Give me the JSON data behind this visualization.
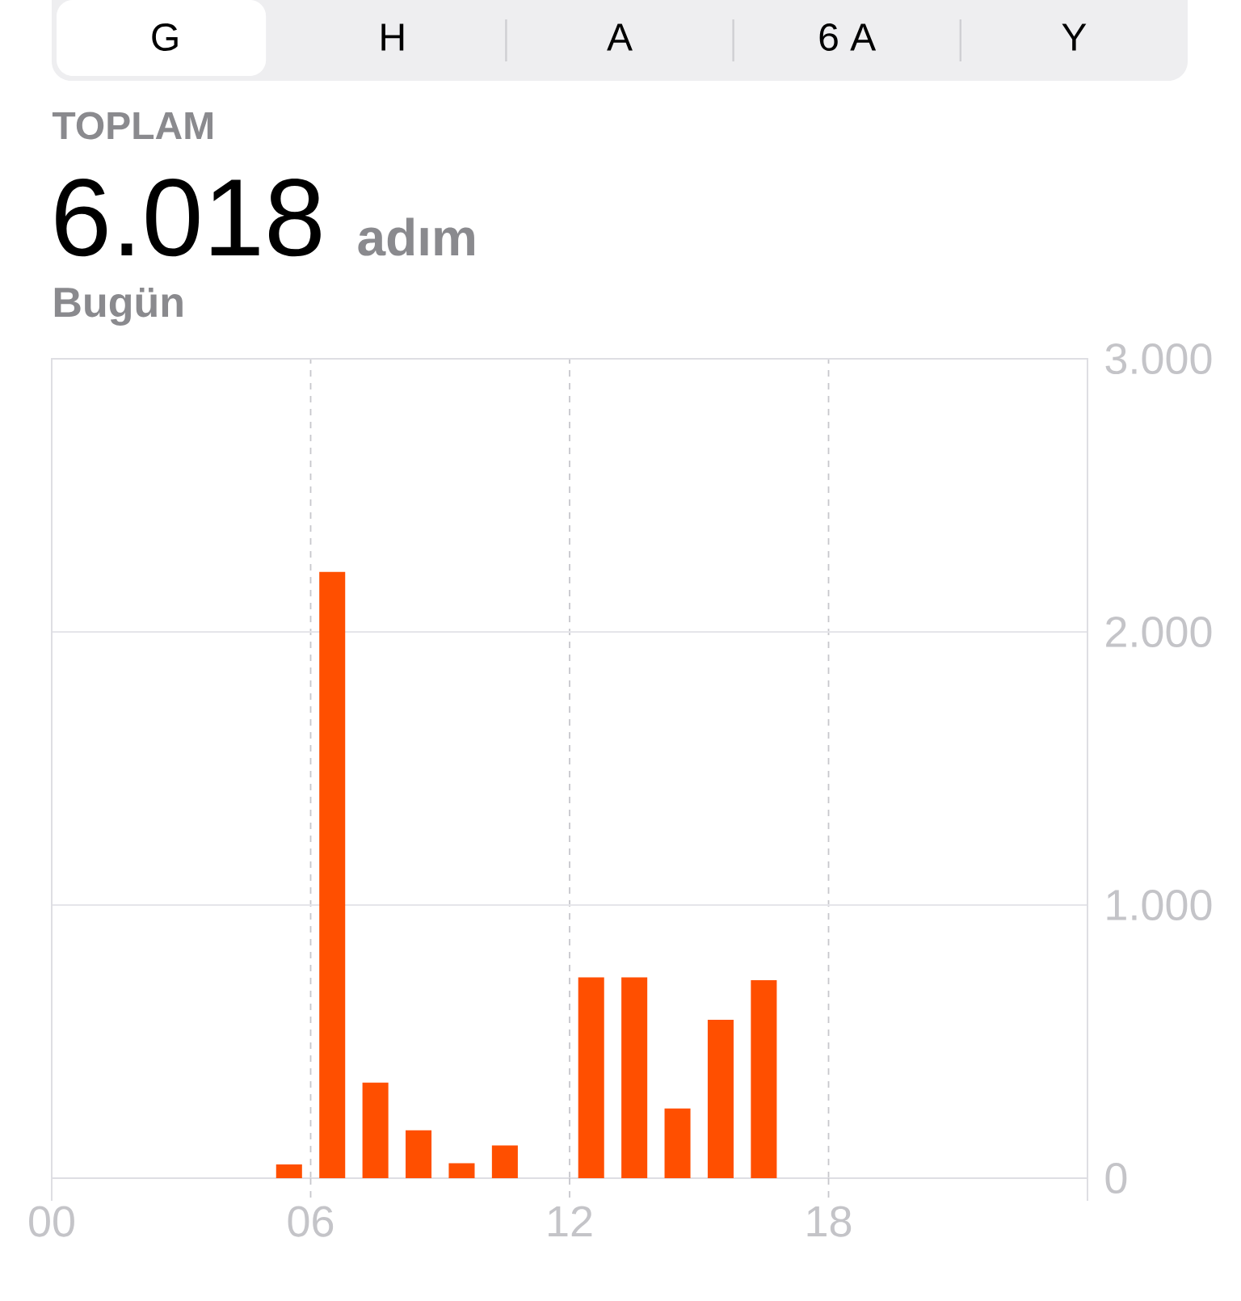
{
  "chart_data": {
    "type": "bar",
    "title": "6.018",
    "subtitle": "Bugün",
    "annotations": [
      "G",
      "H",
      "A",
      "6 A",
      "Y",
      "TOPLAM",
      "adım"
    ],
    "x": [
      5.5,
      6.5,
      7.5,
      8.5,
      9.5,
      10.5,
      12.5,
      13.5,
      14.5,
      15.5,
      16.5
    ],
    "values": [
      50,
      2220,
      350,
      175,
      55,
      120,
      735,
      735,
      255,
      580,
      725
    ],
    "color": "#ff4f00",
    "xlim": [
      0,
      24
    ],
    "xticks": [
      {
        "value": 0,
        "label": "00"
      },
      {
        "value": 6,
        "label": "06"
      },
      {
        "value": 12,
        "label": "12"
      },
      {
        "value": 18,
        "label": "18"
      }
    ],
    "ylim": [
      0,
      3000
    ],
    "yticks": [
      0,
      {
        "value": 1000,
        "label": "1.000"
      },
      {
        "value": 2000,
        "label": "2.000"
      },
      {
        "value": 3000,
        "label": "3.000"
      }
    ],
    "grid": true
  }
}
